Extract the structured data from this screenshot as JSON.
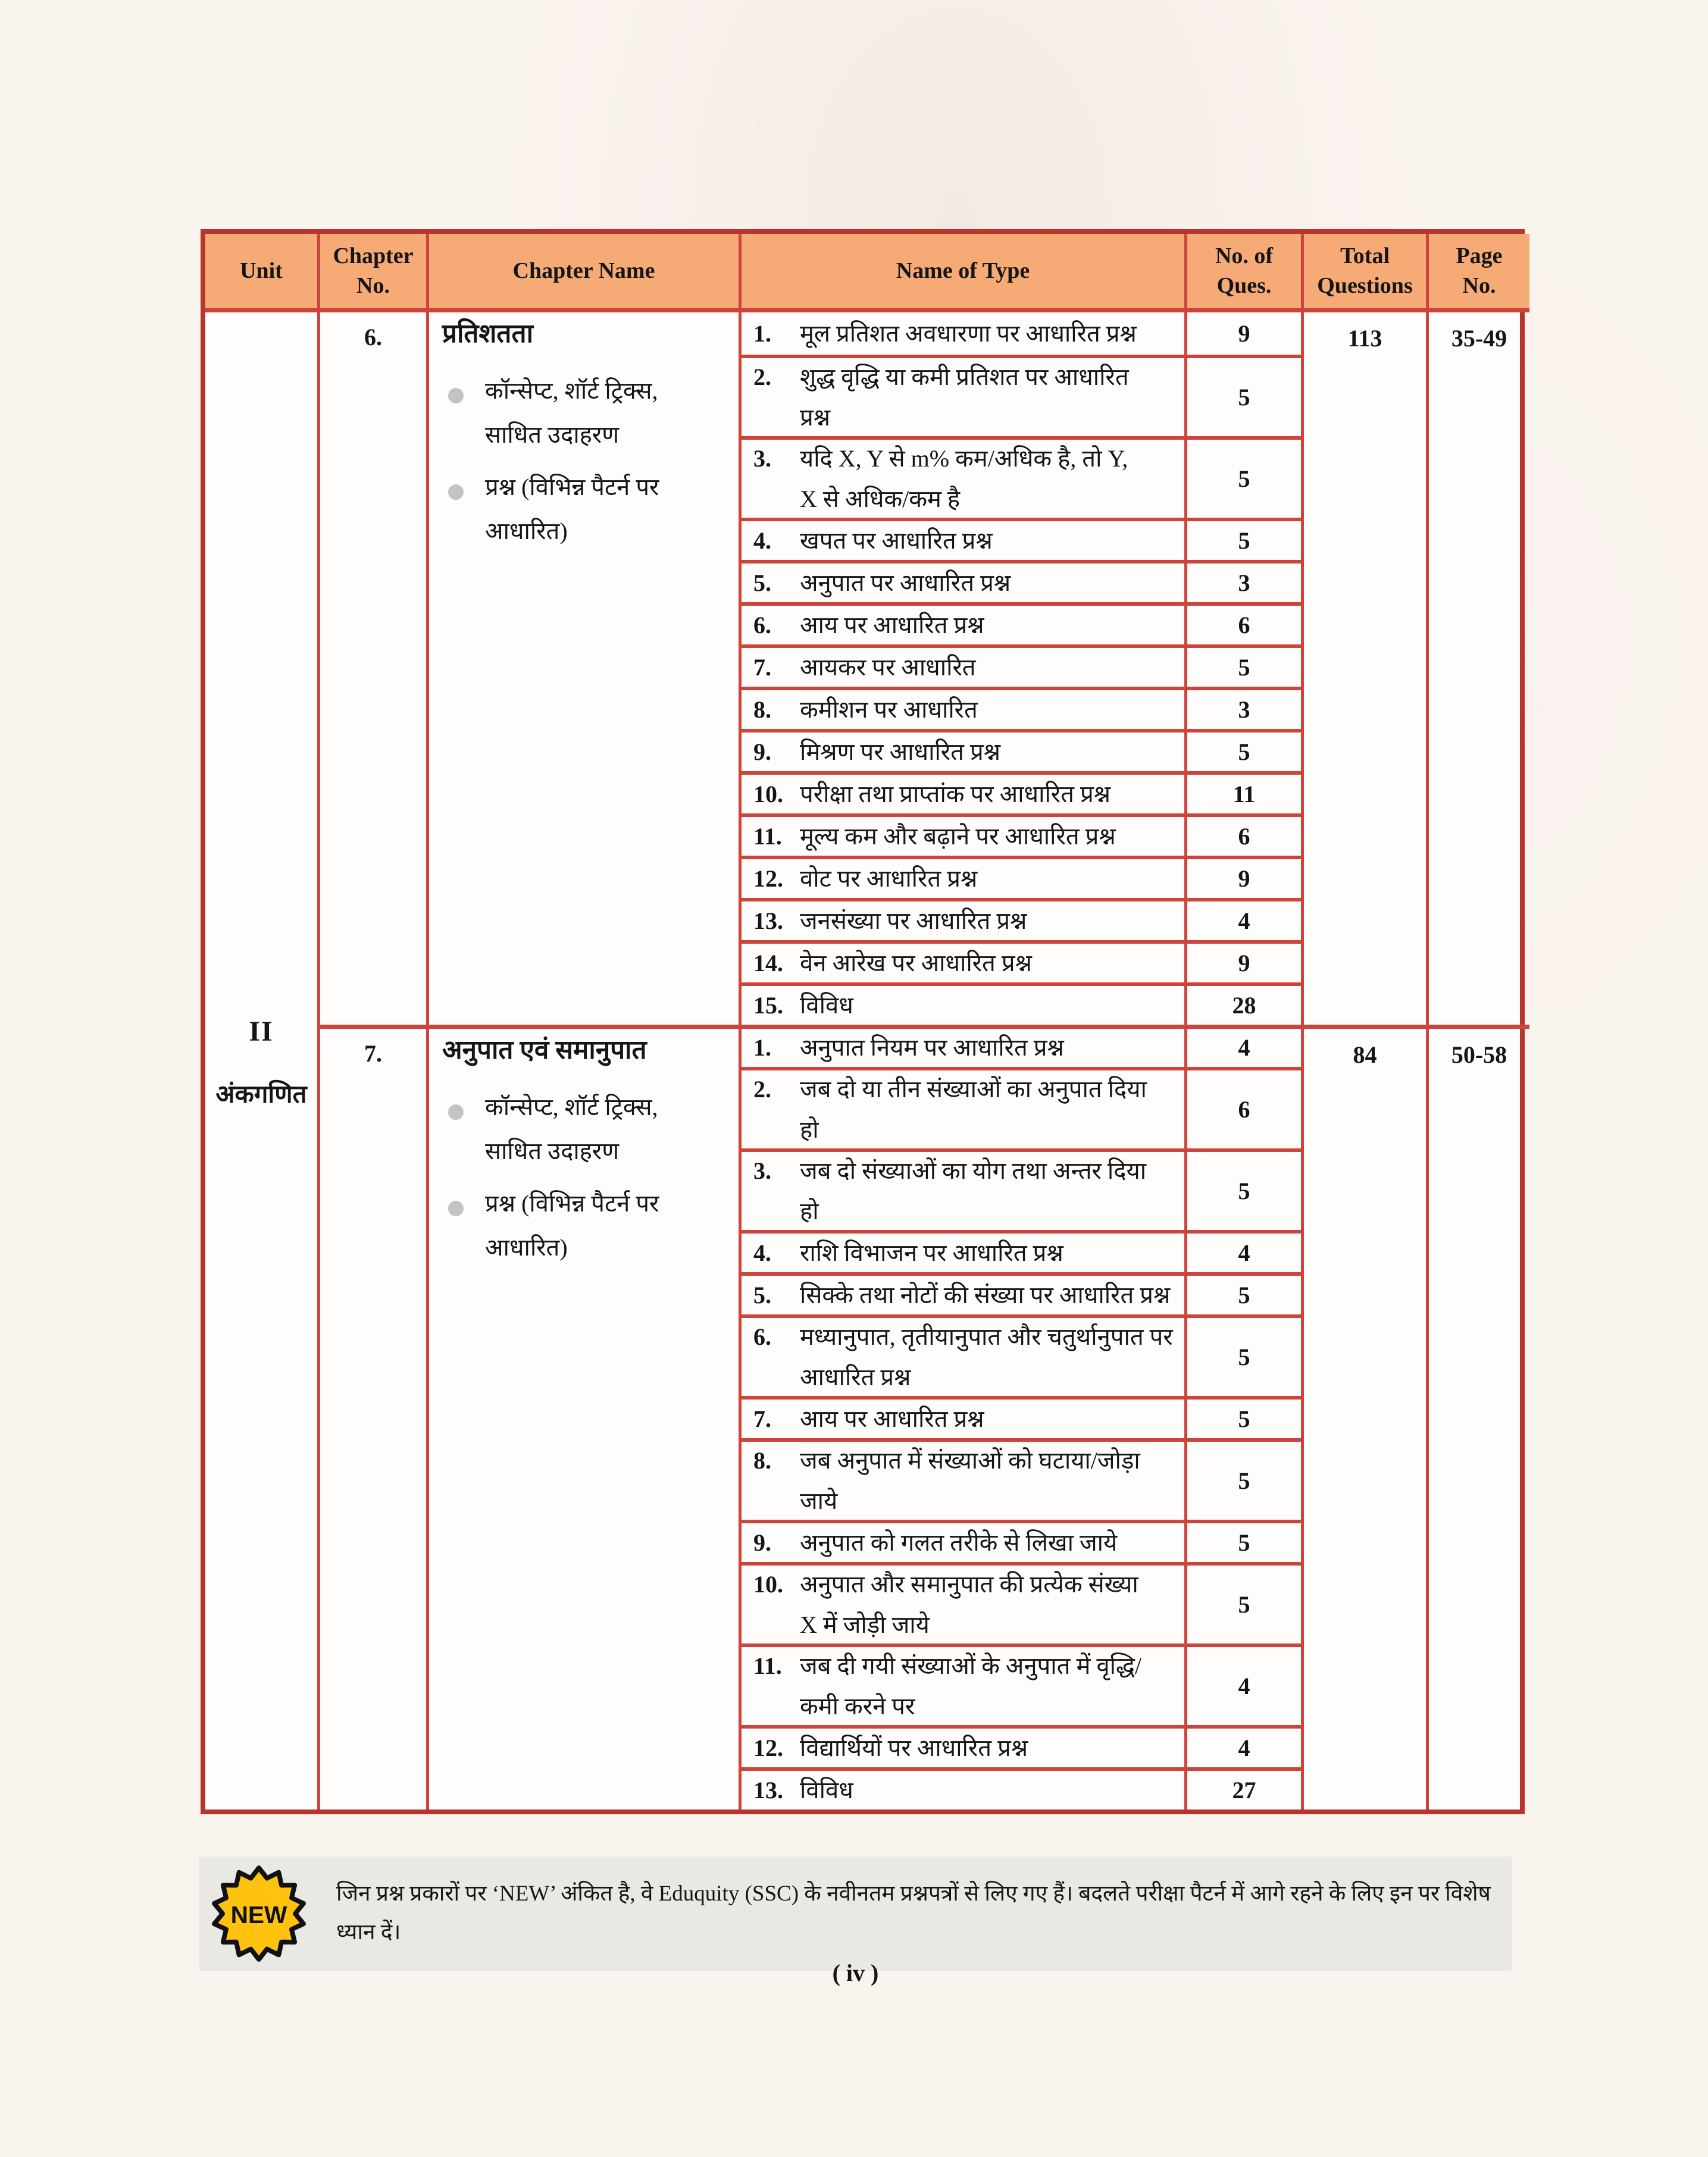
{
  "page": {
    "footer": "( iv )"
  },
  "table": {
    "headers": [
      "Unit",
      "Chapter\nNo.",
      "Chapter Name",
      "Name of Type",
      "No. of\nQues.",
      "Total\nQuestions",
      "Page\nNo."
    ]
  },
  "unit": {
    "number": "II",
    "name": "अंकगणित"
  },
  "chapters": [
    {
      "number": "6.",
      "name": "प्रतिशतता",
      "bullets": [
        "कॉन्सेप्ट, शॉर्ट ट्रिक्स,\nसाधित उदाहरण",
        "प्रश्न (विभिन्न पैटर्न पर\nआधारित)"
      ],
      "total_questions": "113",
      "page_range": "35-49",
      "types": [
        {
          "sn": "1.",
          "name": "मूल प्रतिशत अवधारणा पर आधारित प्रश्न",
          "ques": "9"
        },
        {
          "sn": "2.",
          "name": "शुद्ध वृद्धि या कमी प्रतिशत पर आधारित\nप्रश्न",
          "ques": "5"
        },
        {
          "sn": "3.",
          "name": "यदि X, Y से m% कम/अधिक है, तो Y,\nX से अधिक/कम है",
          "ques": "5"
        },
        {
          "sn": "4.",
          "name": "खपत पर आधारित प्रश्न",
          "ques": "5"
        },
        {
          "sn": "5.",
          "name": "अनुपात पर आधारित प्रश्न",
          "ques": "3"
        },
        {
          "sn": "6.",
          "name": "आय पर आधारित प्रश्न",
          "ques": "6"
        },
        {
          "sn": "7.",
          "name": "आयकर पर आधारित",
          "ques": "5"
        },
        {
          "sn": "8.",
          "name": "कमीशन पर आधारित",
          "ques": "3"
        },
        {
          "sn": "9.",
          "name": "मिश्रण पर आधारित प्रश्न",
          "ques": "5"
        },
        {
          "sn": "10.",
          "name": "परीक्षा तथा प्राप्तांक पर आधारित प्रश्न",
          "ques": "11"
        },
        {
          "sn": "11.",
          "name": "मूल्य कम और बढ़ाने पर आधारित प्रश्न",
          "ques": "6"
        },
        {
          "sn": "12.",
          "name": "वोट पर आधारित प्रश्न",
          "ques": "9"
        },
        {
          "sn": "13.",
          "name": "जनसंख्या पर आधारित प्रश्न",
          "ques": "4"
        },
        {
          "sn": "14.",
          "name": "वेन आरेख पर आधारित प्रश्न",
          "ques": "9"
        },
        {
          "sn": "15.",
          "name": "विविध",
          "ques": "28"
        }
      ]
    },
    {
      "number": "7.",
      "name": "अनुपात एवं समानुपात",
      "bullets": [
        "कॉन्सेप्ट, शॉर्ट ट्रिक्स,\nसाधित उदाहरण",
        "प्रश्न (विभिन्न पैटर्न पर\nआधारित)"
      ],
      "total_questions": "84",
      "page_range": "50-58",
      "types": [
        {
          "sn": "1.",
          "name": "अनुपात नियम पर आधारित प्रश्न",
          "ques": "4"
        },
        {
          "sn": "2.",
          "name": "जब दो या तीन संख्याओं का अनुपात दिया\nहो",
          "ques": "6"
        },
        {
          "sn": "3.",
          "name": "जब दो संख्याओं का योग तथा अन्तर दिया\nहो",
          "ques": "5"
        },
        {
          "sn": "4.",
          "name": "राशि विभाजन पर आधारित प्रश्न",
          "ques": "4"
        },
        {
          "sn": "5.",
          "name": "सिक्के तथा नोटों की संख्या पर आधारित प्रश्न",
          "ques": "5"
        },
        {
          "sn": "6.",
          "name": "मध्यानुपात, तृतीयानुपात और चतुर्थानुपात पर\nआधारित प्रश्न",
          "ques": "5"
        },
        {
          "sn": "7.",
          "name": "आय पर आधारित प्रश्न",
          "ques": "5"
        },
        {
          "sn": "8.",
          "name": "जब अनुपात में संख्याओं को घटाया/जोड़ा\nजाये",
          "ques": "5"
        },
        {
          "sn": "9.",
          "name": "अनुपात को गलत तरीके से लिखा जाये",
          "ques": "5"
        },
        {
          "sn": "10.",
          "name": "अनुपात और समानुपात की प्रत्येक संख्या\nX में जोड़ी जाये",
          "ques": "5"
        },
        {
          "sn": "11.",
          "name": "जब दी गयी संख्याओं के अनुपात में वृद्धि/\nकमी करने पर",
          "ques": "4"
        },
        {
          "sn": "12.",
          "name": "विद्यार्थियों पर आधारित प्रश्न",
          "ques": "4"
        },
        {
          "sn": "13.",
          "name": "विविध",
          "ques": "27"
        }
      ]
    }
  ],
  "note": {
    "badge": "NEW",
    "text": "जिन प्रश्न प्रकारों पर ‘NEW’ अंकित है, वे Eduquity (SSC) के नवीनतम प्रश्नपत्रों से लिए गए हैं। बदलते परीक्षा पैटर्न में आगे रहने के लिए इन पर विशेष ध्यान दें।"
  },
  "colors": {
    "table_border": "#b8352e",
    "grid_line": "#cc443b",
    "header_bg": "#f6ab76",
    "page_bg": "#faf4ef",
    "banner_bg": "#e9e8e4",
    "badge_gold": "#ffc20e",
    "bullet_gray": "#c3c3c3"
  }
}
